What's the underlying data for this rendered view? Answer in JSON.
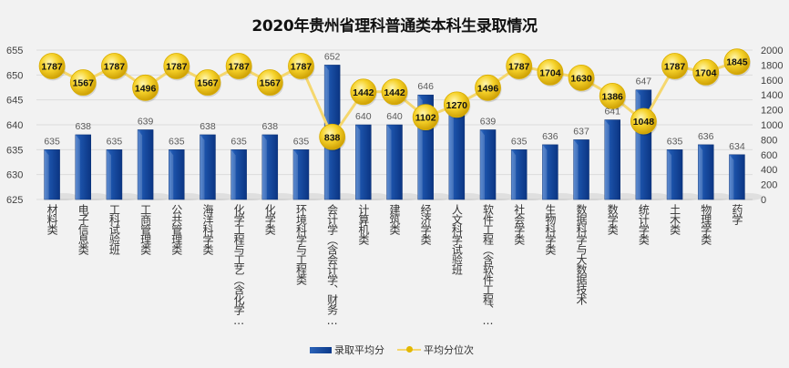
{
  "chart_data": {
    "type": "bar",
    "title": "2020年贵州省理科普通类本科生录取情况",
    "categories": [
      "材料类",
      "电子信息类",
      "工科试验班",
      "工商管理类",
      "公共管理类",
      "海洋科学类",
      "化学工程与工艺（含化学…",
      "化学类",
      "环境科学与工程类",
      "会计学（含会计学、财务…",
      "计算机类",
      "建筑类",
      "经济学类",
      "人文科学试验班",
      "软件工程（含软件工程、…",
      "社会学类",
      "生物科学类",
      "数据科学与大数据技术",
      "数学类",
      "统计学类",
      "土木类",
      "物理学类",
      "药学"
    ],
    "series": [
      {
        "name": "录取平均分",
        "type": "bar",
        "axis": "left",
        "color": "#1a4a9c",
        "values": [
          635,
          638,
          635,
          639,
          635,
          638,
          635,
          638,
          635,
          652,
          640,
          640,
          646,
          643,
          639,
          635,
          636,
          637,
          641,
          647,
          635,
          636,
          634
        ]
      },
      {
        "name": "平均分位次",
        "type": "line",
        "axis": "right",
        "color": "#f5d76e",
        "marker_color": "#f0c419",
        "values": [
          1787,
          1567,
          1787,
          1496,
          1787,
          1567,
          1787,
          1567,
          1787,
          838,
          1442,
          1442,
          1102,
          1270,
          1496,
          1787,
          1704,
          1630,
          1386,
          1048,
          1787,
          1704,
          1845
        ]
      }
    ],
    "y_left": {
      "min": 625,
      "max": 655,
      "ticks": [
        625,
        630,
        635,
        640,
        645,
        650,
        655
      ]
    },
    "y_right": {
      "min": 0,
      "max": 2000,
      "ticks": [
        0,
        200,
        400,
        600,
        800,
        1000,
        1200,
        1400,
        1600,
        1800,
        2000
      ]
    },
    "xlabel": "",
    "ylabel": "",
    "grid": true,
    "legend_position": "bottom"
  }
}
